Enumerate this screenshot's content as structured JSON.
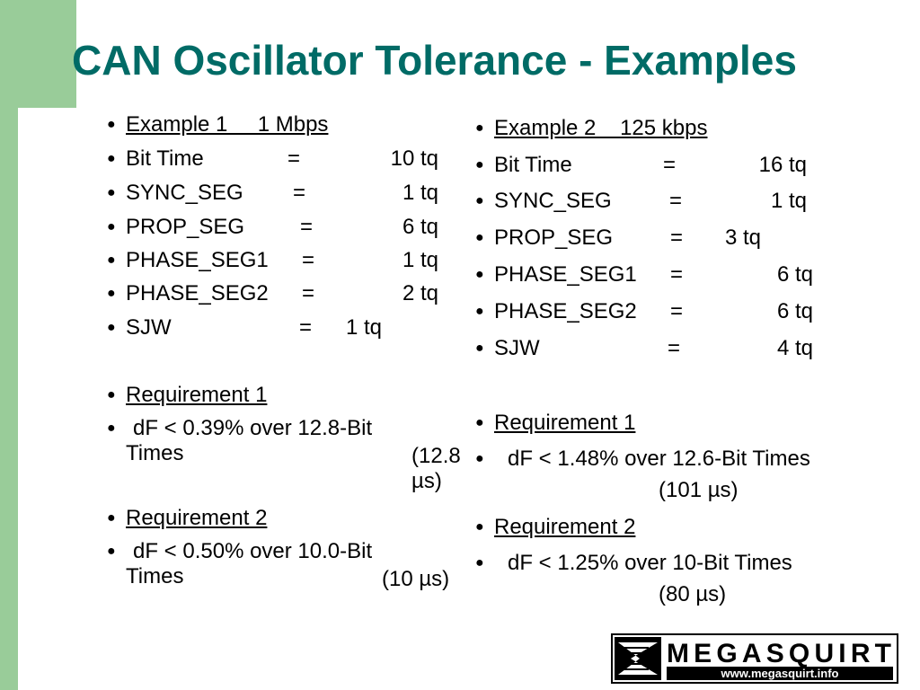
{
  "title": "CAN Oscillator Tolerance - Examples",
  "left": {
    "heading": "Example 1     1 Mbps",
    "rows": [
      {
        "label": "Bit Time",
        "sign": "=",
        "value": "10 tq"
      },
      {
        "label": "SYNC_SEG",
        "sign": "=",
        "value": "1 tq"
      },
      {
        "label": "PROP_SEG",
        "sign": "=",
        "value": "6 tq"
      },
      {
        "label": "PHASE_SEG1",
        "sign": "=",
        "value": "1 tq"
      },
      {
        "label": "PHASE_SEG2",
        "sign": "=",
        "value": "2 tq"
      },
      {
        "label": "SJW",
        "sign": "=",
        "value": "1 tq"
      }
    ],
    "requirements": [
      {
        "heading": "Requirement 1",
        "text": "dF < 0.39% over 12.8-Bit Times",
        "note": "(12.8 µs)"
      },
      {
        "heading": "Requirement 2",
        "text": "dF < 0.50% over 10.0-Bit Times",
        "note": "(10 µs)"
      }
    ]
  },
  "right": {
    "heading": "Example 2    125 kbps",
    "rows": [
      {
        "label": "Bit Time",
        "sign": "=",
        "value": "16 tq"
      },
      {
        "label": "SYNC_SEG",
        "sign": "=",
        "value": "1 tq"
      },
      {
        "label": "PROP_SEG",
        "sign": "=",
        "value": "3 tq"
      },
      {
        "label": "PHASE_SEG1",
        "sign": "=",
        "value": "6 tq"
      },
      {
        "label": "PHASE_SEG2",
        "sign": "=",
        "value": "6 tq"
      },
      {
        "label": "SJW",
        "sign": "=",
        "value": "4 tq"
      }
    ],
    "requirements": [
      {
        "heading": "Requirement 1",
        "text": "dF < 1.48% over 12.6-Bit Times",
        "note": "(101 µs)"
      },
      {
        "heading": "Requirement 2",
        "text": "dF < 1.25% over 10-Bit Times",
        "note": "(80 µs)"
      }
    ]
  },
  "logo": {
    "name": "MEGASQUIRT",
    "url": "www.megasquirt.info"
  }
}
